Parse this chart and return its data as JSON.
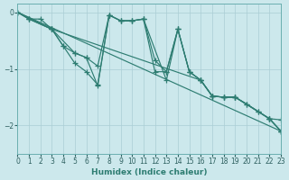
{
  "xlabel": "Humidex (Indice chaleur)",
  "bg_color": "#cce8ec",
  "grid_color": "#aacdd4",
  "line_color": "#2e7d72",
  "spine_color": "#6aafb0",
  "tick_color": "#2e6060",
  "xlim": [
    0,
    23
  ],
  "ylim": [
    -2.5,
    0.15
  ],
  "yticks": [
    0,
    -1,
    -2
  ],
  "xticks": [
    0,
    1,
    2,
    3,
    4,
    5,
    6,
    7,
    8,
    9,
    10,
    11,
    12,
    13,
    14,
    15,
    16,
    17,
    18,
    19,
    20,
    21,
    22,
    23
  ],
  "series": [
    {
      "x": [
        0,
        1,
        2,
        3,
        4,
        5,
        6,
        7,
        8,
        9,
        10,
        11,
        12,
        13,
        14,
        15,
        16,
        17,
        18,
        19,
        20,
        21,
        22,
        23
      ],
      "y": [
        0,
        -0.12,
        -0.12,
        -0.3,
        -0.6,
        -0.72,
        -0.8,
        -0.95,
        -0.05,
        -0.15,
        -0.15,
        -0.12,
        -0.85,
        -1.05,
        -0.3,
        -1.05,
        -1.2,
        -1.48,
        -1.5,
        -1.5,
        -1.62,
        -1.75,
        -1.88,
        -1.9
      ]
    },
    {
      "x": [
        0,
        3,
        5,
        6,
        7,
        8,
        9,
        10,
        11,
        12,
        13,
        14,
        15,
        16,
        17,
        18,
        19,
        20,
        21,
        22,
        23
      ],
      "y": [
        0,
        -0.3,
        -0.72,
        -0.8,
        -1.3,
        -0.05,
        -0.15,
        -0.15,
        -0.12,
        -1.05,
        -1.05,
        -0.3,
        -1.05,
        -1.2,
        -1.48,
        -1.5,
        -1.5,
        -1.62,
        -1.75,
        -1.88,
        -2.1
      ]
    },
    {
      "x": [
        0,
        23
      ],
      "y": [
        0,
        -2.1
      ]
    },
    {
      "x": [
        0,
        1,
        3,
        16,
        17,
        18,
        19,
        22,
        23
      ],
      "y": [
        0,
        -0.12,
        -0.3,
        -1.2,
        -1.48,
        -1.5,
        -1.5,
        -1.88,
        -2.1
      ]
    },
    {
      "x": [
        0,
        1,
        3,
        4,
        5,
        6,
        7,
        8,
        9,
        10,
        11,
        13,
        14,
        15,
        16,
        17,
        18,
        19,
        22,
        23
      ],
      "y": [
        0,
        -0.12,
        -0.3,
        -0.6,
        -0.9,
        -1.05,
        -1.28,
        -0.05,
        -0.15,
        -0.15,
        -0.12,
        -1.2,
        -0.3,
        -1.05,
        -1.2,
        -1.48,
        -1.5,
        -1.5,
        -1.88,
        -2.1
      ]
    }
  ],
  "marker": "+",
  "markersize": 4,
  "linewidth": 0.85,
  "markeredgewidth": 0.9
}
